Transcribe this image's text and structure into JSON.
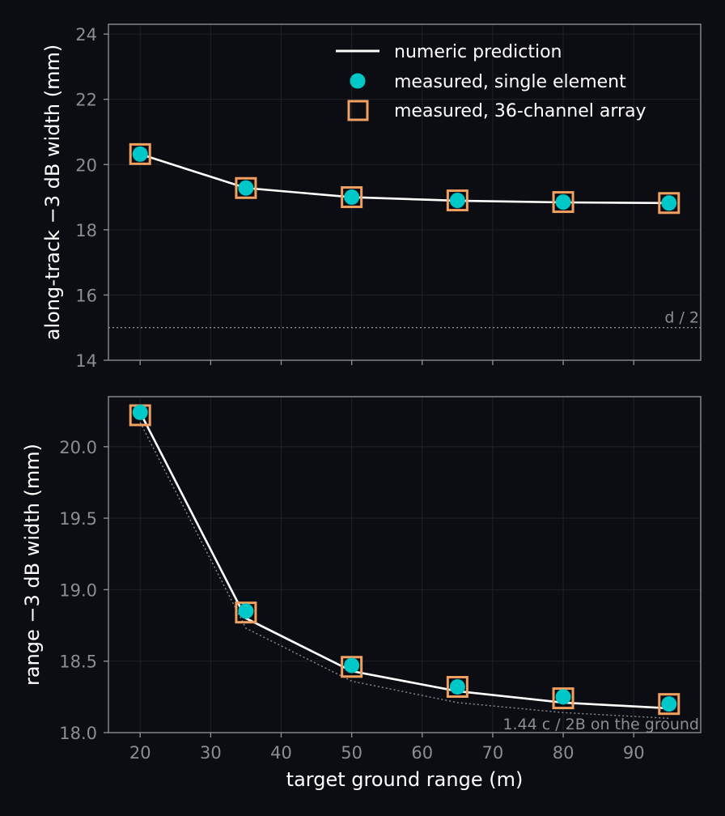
{
  "chart_data": [
    {
      "type": "line",
      "xlabel": "",
      "ylabel": "along-track −3 dB width (mm)",
      "x": [
        20,
        35,
        50,
        65,
        80,
        95
      ],
      "xlim": [
        15.5,
        99.5
      ],
      "ylim": [
        14,
        24.3
      ],
      "y_ticks": [
        14,
        16,
        18,
        20,
        22,
        24
      ],
      "y_tick_labels": [
        "14",
        "16",
        "18",
        "20",
        "22",
        "24"
      ],
      "grid": true,
      "legend": "top-right",
      "series": [
        {
          "name": "numeric prediction",
          "style": "line",
          "color": "#ffffff",
          "values": [
            20.32,
            19.28,
            19.0,
            18.89,
            18.84,
            18.82
          ]
        },
        {
          "name": "measured, single element",
          "style": "circle",
          "color": "#00c8c8",
          "values": [
            20.32,
            19.28,
            19.0,
            18.9,
            18.85,
            18.82
          ]
        },
        {
          "name": "measured, 36-channel array",
          "style": "square",
          "color": "#f0a060",
          "values": [
            20.32,
            19.28,
            19.0,
            18.9,
            18.85,
            18.82
          ]
        }
      ],
      "reference_line": {
        "label": "d / 2",
        "value": 15.0
      }
    },
    {
      "type": "line",
      "xlabel": "target ground range (m)",
      "ylabel": "range −3 dB width (mm)",
      "x": [
        20,
        35,
        50,
        65,
        80,
        95
      ],
      "xlim": [
        15.5,
        99.5
      ],
      "ylim": [
        18.0,
        20.35
      ],
      "x_ticks": [
        20,
        30,
        40,
        50,
        60,
        70,
        80,
        90
      ],
      "x_tick_labels": [
        "20",
        "30",
        "40",
        "50",
        "60",
        "70",
        "80",
        "90"
      ],
      "y_ticks": [
        18.0,
        18.5,
        19.0,
        19.5,
        20.0
      ],
      "y_tick_labels": [
        "18.0",
        "18.5",
        "19.0",
        "19.5",
        "20.0"
      ],
      "grid": true,
      "series": [
        {
          "name": "numeric prediction",
          "style": "line",
          "color": "#ffffff",
          "values": [
            20.24,
            18.8,
            18.43,
            18.29,
            18.21,
            18.17
          ]
        },
        {
          "name": "measured, single element",
          "style": "circle",
          "color": "#00c8c8",
          "values": [
            20.24,
            18.85,
            18.47,
            18.32,
            18.25,
            18.2
          ]
        },
        {
          "name": "measured, 36-channel array",
          "style": "square",
          "color": "#f0a060",
          "values": [
            20.22,
            18.84,
            18.46,
            18.32,
            18.24,
            18.2
          ]
        }
      ],
      "reference_curve": {
        "label": "1.44 c / 2B on the ground",
        "values": [
          20.17,
          18.73,
          18.36,
          18.21,
          18.14,
          18.1
        ]
      }
    }
  ]
}
